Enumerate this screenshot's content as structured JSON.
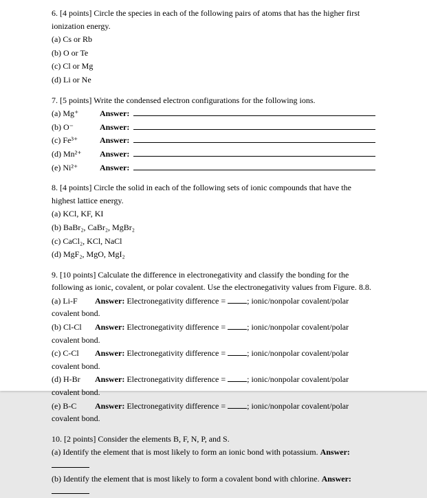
{
  "q6": {
    "prompt": "6. [4 points] Circle the species in each of the following pairs of atoms that has the higher first ionization energy.",
    "a": "(a) Cs or Rb",
    "b": "(b) O or Te",
    "c": "(c) Cl or Mg",
    "d": "(d) Li or Ne"
  },
  "q7": {
    "prompt": "7. [5 points] Write the condensed electron configurations for the following ions.",
    "a": "(a) Mg⁺",
    "b": "(b) O⁻",
    "c": "(c) Fe³⁺",
    "d": "(d) Mn²⁺",
    "e": "(e) Ni²⁺",
    "answerLabel": "Answer:"
  },
  "q8": {
    "prompt": "8. [4 points] Circle the solid in each of the following sets of ionic compounds that have the highest lattice energy.",
    "a": "(a) KCl, KF, KI",
    "b": "(b) BaBr₂, CaBr₂, MgBr₂",
    "c": "(c) CaCl₂, KCl, NaCl",
    "d": "(d) MgF₂, MgO, MgI₂"
  },
  "q9": {
    "prompt": "9. [10 points] Calculate the difference in electronegativity and classify the bonding for the following as ionic, covalent, or polar covalent. Use the electronegativity values from Figure. 8.8.",
    "a": "(a) Li-F",
    "b": "(b) Cl-Cl",
    "c": "(c) C-Cl",
    "d": "(d) H-Br",
    "e": "(e) B-C",
    "answerLabel": "Answer:",
    "endiff": " Electronegativity difference = ",
    "bondtext": "; ionic/nonpolar covalent/polar covalent bond."
  },
  "q10": {
    "prompt": "10. [2 points] Consider the elements B, F, N, P, and S.",
    "a": "(a) Identify the element that is most likely to form an ionic bond with potassium. ",
    "b": "(b) Identify the element that is most likely to form a covalent bond with chlorine. ",
    "answerLabel": "Answer:"
  }
}
